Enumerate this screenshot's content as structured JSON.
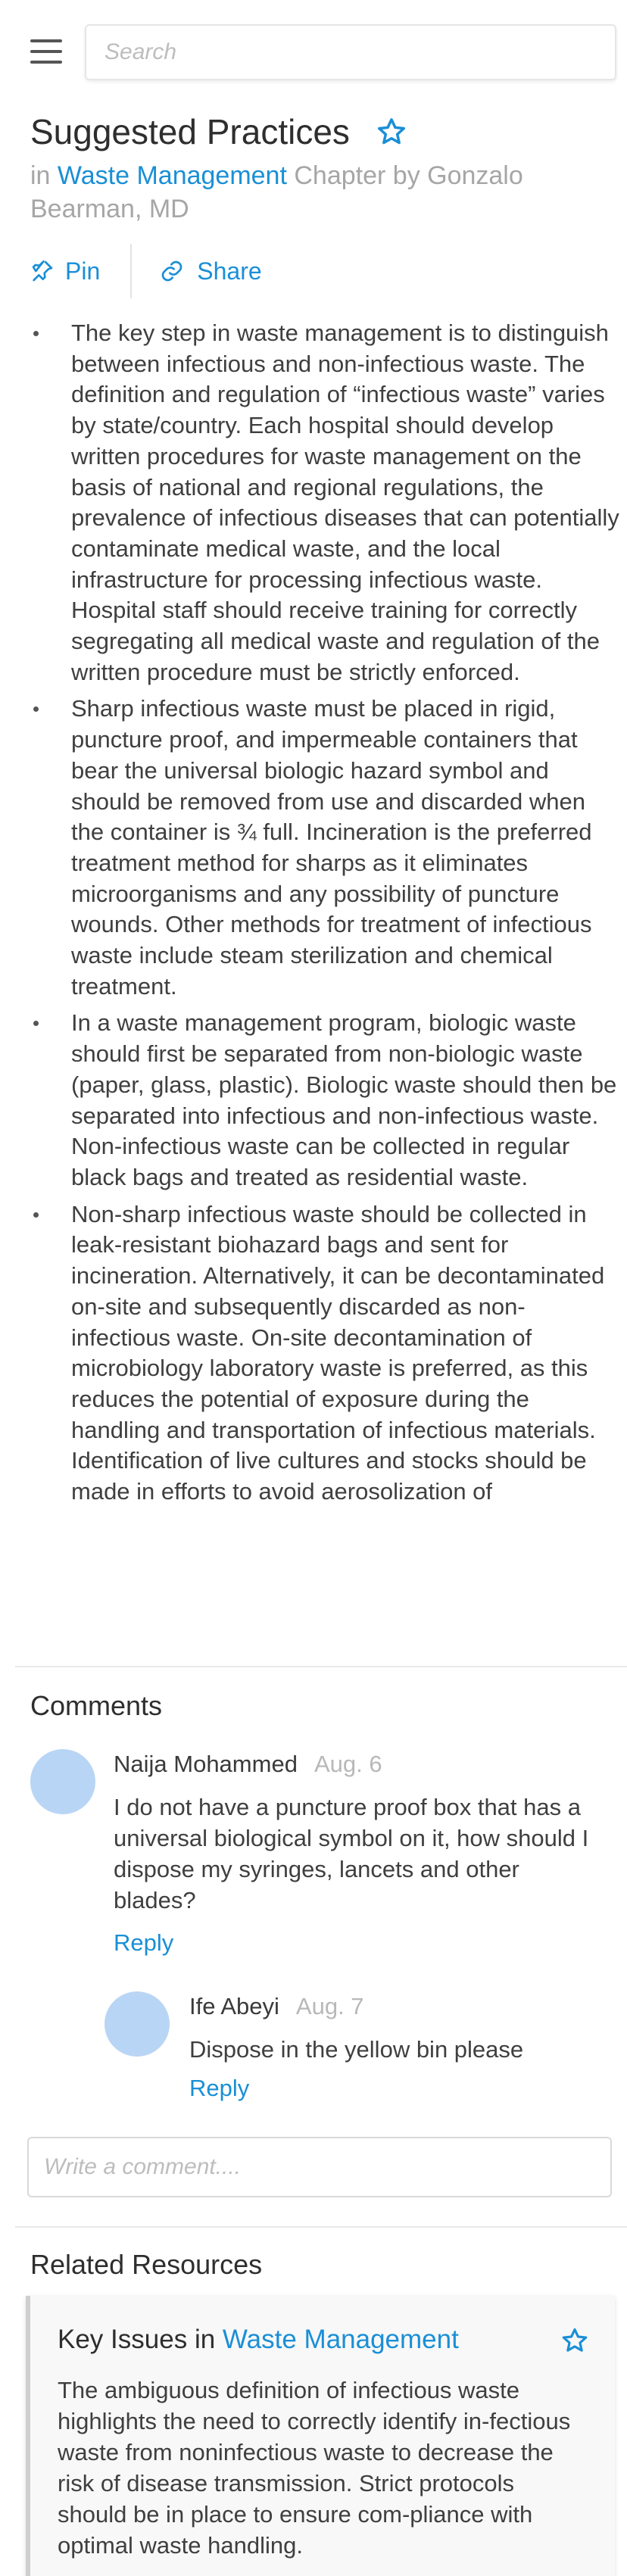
{
  "search": {
    "placeholder": "Search"
  },
  "page": {
    "title": "Suggested Practices",
    "subtitle_prefix": "in",
    "subtitle_link": "Waste Management",
    "subtitle_suffix": "Chapter by Gonzalo Bearman, MD"
  },
  "actions": {
    "pin_label": "Pin",
    "share_label": "Share"
  },
  "practices": [
    "The key step in waste management is to distinguish between infectious and non-infectious waste. The definition and regulation of “infectious waste” varies by state/country. Each hospital should develop written procedures for waste management on the basis of national and regional regulations, the prevalence of infectious diseases that can potentially contaminate medical waste, and the local infrastructure for processing infectious waste. Hospital staff should receive training for correctly segregating all medical waste and regulation of the written procedure must be strictly enforced.",
    "Sharp infectious waste must be placed in rigid, puncture proof, and impermeable containers that bear the universal biologic hazard symbol and should be removed from use and discarded when the container is ¾ full. Incineration is the preferred treatment method for sharps as it eliminates microorganisms and any possibility of puncture wounds. Other methods for treatment of infectious waste include steam sterilization and chemical treatment.",
    "In a waste management program, biologic waste should first be separated from non-biologic waste (paper, glass, plastic). Biologic waste should then be separated into infectious and non-infectious waste. Non-infectious waste can be collected in regular black bags and treated as residential waste.",
    "Non-sharp infectious waste should be collected in leak-resistant biohazard bags and sent for incineration. Alternatively, it can be decontaminated on-site and subsequently discarded as non-infectious waste. On-site decontamination of microbiology laboratory waste is preferred, as this reduces the potential of exposure during the handling and transportation of infectious materials. Identification of live cultures and stocks should be made in efforts to avoid aerosolization of"
  ],
  "comments": {
    "heading": "Comments",
    "items": [
      {
        "author": "Naija Mohammed",
        "date": "Aug. 6",
        "text": "I do not have a puncture proof box that has a universal biological symbol on it, how should I dispose my syringes, lancets and other blades?",
        "reply_label": "Reply"
      },
      {
        "author": "Ife Abeyi",
        "date": "Aug. 7",
        "text": "Dispose in the yellow bin please",
        "reply_label": "Reply"
      }
    ],
    "input_placeholder": "Write a comment...."
  },
  "related": {
    "heading": "Related Resources",
    "card": {
      "title": "Key Issues",
      "title_prefix": "in",
      "title_link": "Waste Management",
      "text": "The ambiguous definition of infectious waste highlights the need to correctly identify in-fectious waste from noninfectious waste to decrease the risk of disease transmission. Strict protocols should be in place to ensure com-pliance with optimal waste handling."
    }
  },
  "colors": {
    "accent": "#1a8fd6",
    "avatar": "#b9d5f5",
    "muted": "#a6a6a6"
  }
}
